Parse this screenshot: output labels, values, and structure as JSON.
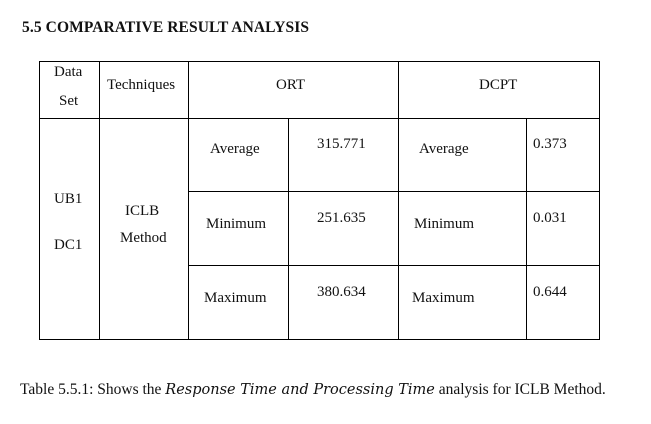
{
  "heading": "5.5 COMPARATIVE RESULT ANALYSIS",
  "table": {
    "header": {
      "data_set_line1": "Data",
      "data_set_line2": "Set",
      "techniques": "Techniques",
      "ort": "ORT",
      "dcpt": "DCPT"
    },
    "dataset_line1": "UB1",
    "dataset_line2": "DC1",
    "technique_line1": "ICLB",
    "technique_line2": "Method",
    "rows": [
      {
        "ort_label": "Average",
        "ort_value": "315.771",
        "dcpt_label": "Average",
        "dcpt_value": "0.373"
      },
      {
        "ort_label": "Minimum",
        "ort_value": "251.635",
        "dcpt_label": "Minimum",
        "dcpt_value": "0.031"
      },
      {
        "ort_label": "Maximum",
        "ort_value": "380.634",
        "dcpt_label": "Maximum",
        "dcpt_value": "0.644"
      }
    ]
  },
  "caption": {
    "prefix": "Table 5.5.1: Shows the ",
    "italic": "Response Time and Processing Time",
    "suffix": " analysis for ICLB Method."
  }
}
